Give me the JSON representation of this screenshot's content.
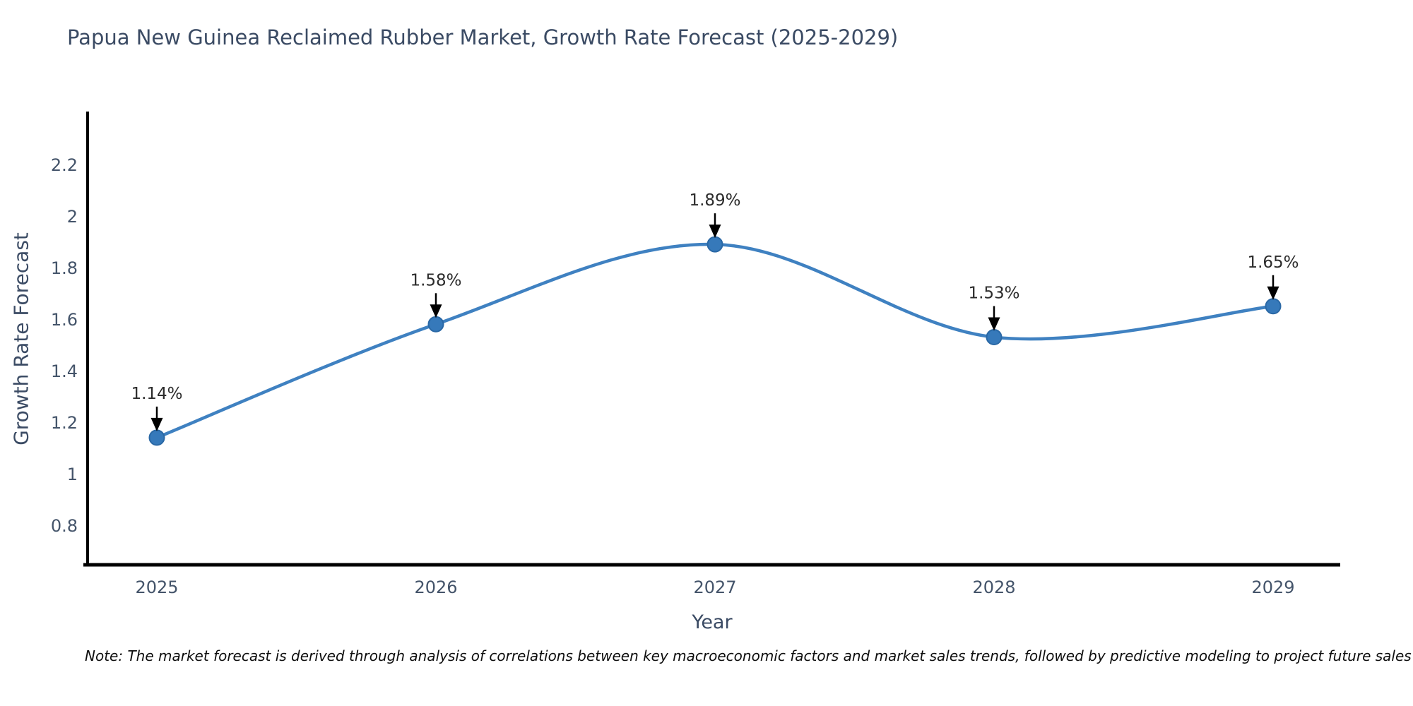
{
  "page": {
    "background": "#ffffff"
  },
  "note": "Note: The market forecast is derived through analysis of correlations between key macroeconomic factors and market sales trends, followed by predictive modeling to project future sales",
  "chart_data": {
    "type": "line",
    "title": "Papua New Guinea Reclaimed Rubber Market, Growth Rate Forecast (2025-2029)",
    "xlabel": "Year",
    "ylabel": "Growth Rate Forecast",
    "x": [
      2025,
      2026,
      2027,
      2028,
      2029
    ],
    "y": [
      1.14,
      1.58,
      1.89,
      1.53,
      1.65
    ],
    "point_labels": [
      "1.14%",
      "1.58%",
      "1.89%",
      "1.53%",
      "1.65%"
    ],
    "y_ticks": [
      0.8,
      1,
      1.2,
      1.4,
      1.6,
      1.8,
      2,
      2.2
    ],
    "x_ticks": [
      "2025",
      "2026",
      "2027",
      "2028",
      "2029"
    ],
    "ylim": [
      0.64,
      2.4
    ],
    "line_shape": "spline",
    "grid": false,
    "legend": "none",
    "colors": {
      "line": "#3f81c1",
      "marker": "#3679ba",
      "marker_edge": "#2a68a5",
      "axis": "#000000",
      "title_text": "#3b4b64",
      "tick_text": "#44546a",
      "annotation": "#2b2b2b"
    }
  }
}
